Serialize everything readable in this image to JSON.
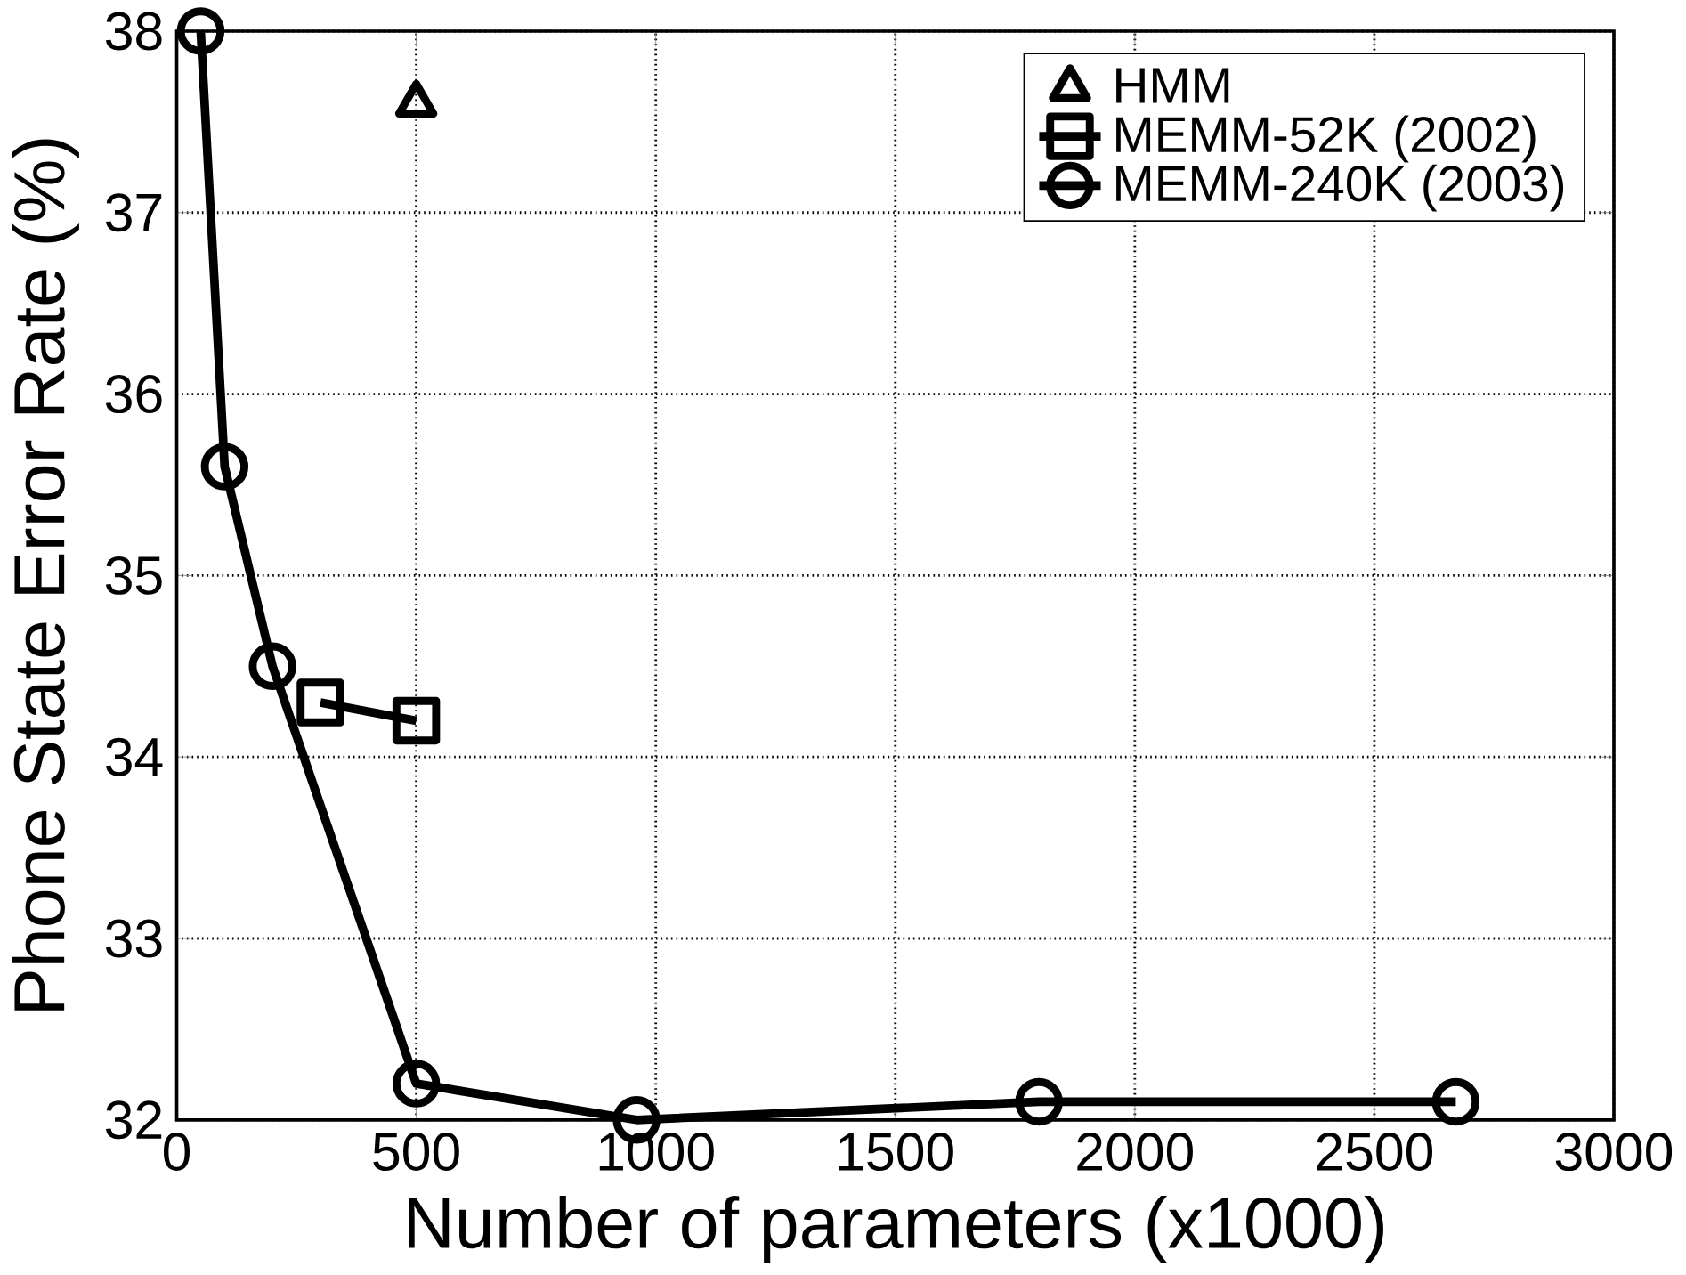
{
  "chart_data": {
    "type": "line",
    "xlabel": "Number of parameters (x1000)",
    "ylabel": "Phone State Error Rate (%)",
    "xlim": [
      0,
      3000
    ],
    "ylim": [
      32,
      38
    ],
    "xticks": [
      0,
      500,
      1000,
      1500,
      2000,
      2500,
      3000
    ],
    "yticks": [
      32,
      33,
      34,
      35,
      36,
      37,
      38
    ],
    "grid": true,
    "legend": "top right",
    "series": [
      {
        "name": "HMM",
        "type": "scatter",
        "marker": "triangle",
        "color": "#000000",
        "x": [
          500
        ],
        "values": [
          37.6
        ]
      },
      {
        "name": "MEMM-52K (2002)",
        "marker": "square",
        "color": "#000000",
        "x": [
          300,
          500
        ],
        "values": [
          34.3,
          34.2
        ]
      },
      {
        "name": "MEMM-240K (2003)",
        "marker": "circle",
        "color": "#000000",
        "x": [
          50,
          100,
          200,
          500,
          960,
          1800,
          2670
        ],
        "values": [
          38.0,
          35.6,
          34.5,
          32.2,
          32.0,
          32.1,
          32.1
        ]
      }
    ]
  }
}
